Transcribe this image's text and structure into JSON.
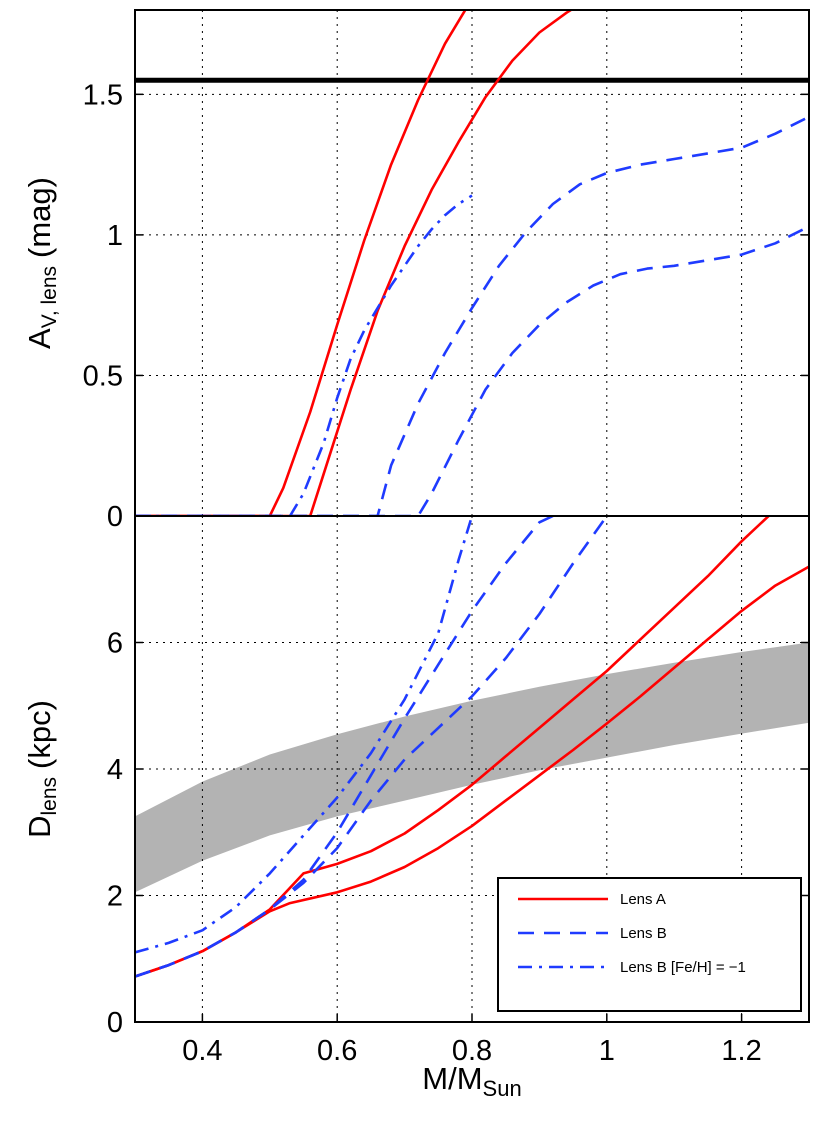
{
  "chart_data": [
    {
      "type": "line",
      "panel": "top",
      "xlabel": "M/M",
      "xlabel_sub": "Sun",
      "ylabel": "A",
      "ylabel_sub": "V, lens",
      "ylabel_unit": "(mag)",
      "xlim": [
        0.3,
        1.3
      ],
      "ylim": [
        0,
        1.8
      ],
      "yticks": [
        0,
        0.5,
        1,
        1.5
      ],
      "ytick_labels": [
        "0",
        "0.5",
        "1",
        "1.5"
      ],
      "grid": true,
      "reference_line": {
        "y": 1.55,
        "color": "#000000"
      },
      "series": [
        {
          "style": "solid",
          "color": "#ff0000",
          "x": [
            0.3,
            0.5,
            0.52,
            0.56,
            0.6,
            0.64,
            0.68,
            0.72,
            0.76,
            0.8
          ],
          "y": [
            0.0,
            0.0,
            0.1,
            0.37,
            0.68,
            0.98,
            1.25,
            1.48,
            1.68,
            1.84
          ]
        },
        {
          "style": "solid",
          "color": "#ff0000",
          "x": [
            0.3,
            0.56,
            0.58,
            0.62,
            0.66,
            0.7,
            0.74,
            0.78,
            0.82,
            0.86,
            0.9,
            0.94,
            0.96
          ],
          "y": [
            0.0,
            0.0,
            0.15,
            0.45,
            0.73,
            0.96,
            1.16,
            1.33,
            1.49,
            1.62,
            1.72,
            1.79,
            1.82
          ]
        },
        {
          "style": "dashed",
          "color": "#1f3bff",
          "x": [
            0.3,
            0.66,
            0.68,
            0.72,
            0.76,
            0.8,
            0.84,
            0.88,
            0.92,
            0.96,
            1.0,
            1.05,
            1.1,
            1.15,
            1.2,
            1.25,
            1.3
          ],
          "y": [
            0.0,
            0.0,
            0.18,
            0.4,
            0.58,
            0.74,
            0.89,
            1.01,
            1.11,
            1.18,
            1.22,
            1.25,
            1.27,
            1.29,
            1.31,
            1.36,
            1.42
          ]
        },
        {
          "style": "dashed",
          "color": "#1f3bff",
          "x": [
            0.3,
            0.72,
            0.74,
            0.78,
            0.82,
            0.86,
            0.9,
            0.94,
            0.98,
            1.02,
            1.06,
            1.1,
            1.15,
            1.2,
            1.25,
            1.3
          ],
          "y": [
            0.0,
            0.0,
            0.08,
            0.27,
            0.45,
            0.58,
            0.68,
            0.76,
            0.82,
            0.86,
            0.88,
            0.89,
            0.91,
            0.93,
            0.97,
            1.03
          ]
        },
        {
          "style": "dashdot",
          "color": "#1f3bff",
          "x": [
            0.3,
            0.53,
            0.55,
            0.58,
            0.6,
            0.62,
            0.64,
            0.66,
            0.68,
            0.7,
            0.72,
            0.74,
            0.76,
            0.78,
            0.8
          ],
          "y": [
            0.0,
            0.0,
            0.08,
            0.26,
            0.42,
            0.56,
            0.66,
            0.74,
            0.82,
            0.89,
            0.96,
            1.02,
            1.07,
            1.11,
            1.14
          ]
        }
      ]
    },
    {
      "type": "line",
      "panel": "bottom",
      "xlabel": "M/M",
      "xlabel_sub": "Sun",
      "ylabel": "D",
      "ylabel_sub": "lens",
      "ylabel_unit": "(kpc)",
      "xlim": [
        0.3,
        1.3
      ],
      "ylim": [
        0,
        8
      ],
      "xticks": [
        0.4,
        0.6,
        0.8,
        1.0,
        1.2
      ],
      "xtick_labels": [
        "0.4",
        "0.6",
        "0.8",
        "1",
        "1.2"
      ],
      "yticks": [
        0,
        2,
        4,
        6
      ],
      "ytick_labels": [
        "0",
        "2",
        "4",
        "6"
      ],
      "grid": true,
      "band": {
        "color": "#b3b3b3",
        "x": [
          0.3,
          0.4,
          0.5,
          0.6,
          0.7,
          0.8,
          0.9,
          1.0,
          1.1,
          1.2,
          1.3
        ],
        "y_low": [
          2.05,
          2.55,
          2.95,
          3.25,
          3.5,
          3.75,
          3.98,
          4.18,
          4.38,
          4.56,
          4.73
        ],
        "y_high": [
          3.25,
          3.8,
          4.23,
          4.55,
          4.83,
          5.08,
          5.3,
          5.5,
          5.68,
          5.85,
          6.0
        ]
      },
      "series": [
        {
          "name": "Lens A",
          "style": "solid",
          "color": "#ff0000",
          "x": [
            0.3,
            0.35,
            0.4,
            0.45,
            0.5,
            0.55,
            0.6,
            0.65,
            0.7,
            0.75,
            0.8,
            0.85,
            0.9,
            0.95,
            1.0,
            1.05,
            1.1,
            1.15,
            1.2,
            1.24
          ],
          "y": [
            0.72,
            0.9,
            1.12,
            1.42,
            1.78,
            2.35,
            2.5,
            2.7,
            2.98,
            3.35,
            3.75,
            4.2,
            4.65,
            5.1,
            5.55,
            6.05,
            6.55,
            7.05,
            7.6,
            8.0
          ]
        },
        {
          "name": "Lens A",
          "style": "solid",
          "color": "#ff0000",
          "x": [
            0.3,
            0.35,
            0.4,
            0.45,
            0.5,
            0.53,
            0.6,
            0.65,
            0.7,
            0.75,
            0.8,
            0.85,
            0.9,
            0.95,
            1.0,
            1.05,
            1.1,
            1.15,
            1.2,
            1.25,
            1.3
          ],
          "y": [
            0.72,
            0.9,
            1.12,
            1.42,
            1.75,
            1.88,
            2.05,
            2.22,
            2.45,
            2.75,
            3.1,
            3.5,
            3.9,
            4.3,
            4.72,
            5.15,
            5.6,
            6.05,
            6.5,
            6.9,
            7.2
          ]
        },
        {
          "name": "Lens B",
          "style": "dashed",
          "color": "#1f3bff",
          "x": [
            0.3,
            0.35,
            0.4,
            0.45,
            0.5,
            0.55,
            0.6,
            0.65,
            0.7,
            0.75,
            0.8,
            0.85,
            0.9,
            0.92
          ],
          "y": [
            0.72,
            0.9,
            1.12,
            1.42,
            1.78,
            2.25,
            3.0,
            3.9,
            4.8,
            5.65,
            6.5,
            7.25,
            7.9,
            8.0
          ]
        },
        {
          "name": "Lens B",
          "style": "dashed",
          "color": "#1f3bff",
          "x": [
            0.3,
            0.35,
            0.4,
            0.45,
            0.5,
            0.55,
            0.6,
            0.65,
            0.7,
            0.75,
            0.8,
            0.85,
            0.9,
            0.95,
            1.0
          ],
          "y": [
            0.72,
            0.9,
            1.12,
            1.42,
            1.78,
            2.2,
            2.75,
            3.5,
            4.15,
            4.65,
            5.15,
            5.75,
            6.45,
            7.25,
            8.0
          ]
        },
        {
          "name": "Lens B [Fe/H] = −1",
          "style": "dashdot",
          "color": "#1f3bff",
          "x": [
            0.3,
            0.35,
            0.4,
            0.45,
            0.5,
            0.55,
            0.6,
            0.65,
            0.7,
            0.75,
            0.78,
            0.8
          ],
          "y": [
            1.1,
            1.25,
            1.45,
            1.82,
            2.35,
            2.95,
            3.55,
            4.25,
            5.1,
            6.15,
            7.3,
            8.0
          ]
        }
      ],
      "legend": {
        "placement": "bottom-right",
        "entries": [
          {
            "label": "Lens A",
            "style": "solid",
            "color": "#ff0000"
          },
          {
            "label": "Lens B",
            "style": "dashed",
            "color": "#1f3bff"
          },
          {
            "label": "Lens B [Fe/H] = −1",
            "style": "dashdot",
            "color": "#1f3bff"
          }
        ]
      }
    }
  ]
}
